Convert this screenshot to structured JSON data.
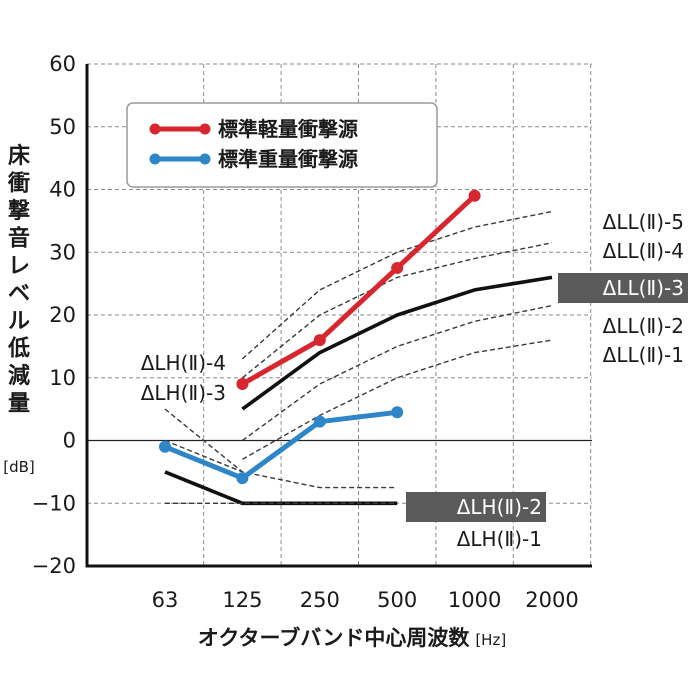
{
  "chart_data": {
    "type": "line",
    "xlabel": "オクターブバンド中心周波数",
    "xunit": "[Hz]",
    "ylabel": "床衝撃音レベル低減量",
    "yunit": "[dB]",
    "categories": [
      "63",
      "125",
      "250",
      "500",
      "1000",
      "2000"
    ],
    "ylim": [
      -20,
      60
    ],
    "yticks": [
      60,
      50,
      40,
      30,
      20,
      10,
      0,
      -10,
      -20
    ],
    "grid": true,
    "legend_position": "top-left",
    "series": [
      {
        "name": "標準軽量衝撃源",
        "color": "#d7262e",
        "values": [
          null,
          9,
          16,
          27.5,
          39,
          null
        ]
      },
      {
        "name": "標準重量衝撃源",
        "color": "#2e86c8",
        "values": [
          -1,
          -6,
          3,
          4.5,
          null,
          null
        ]
      }
    ],
    "reference_curves": [
      {
        "label": "ΔLL(Ⅱ)-5",
        "style": "dashed",
        "highlight": false,
        "values": [
          null,
          13,
          24,
          30,
          34,
          36.5
        ]
      },
      {
        "label": "ΔLL(Ⅱ)-4",
        "style": "dashed",
        "highlight": false,
        "values": [
          null,
          10,
          20,
          26,
          29,
          31.5
        ]
      },
      {
        "label": "ΔLL(Ⅱ)-3",
        "style": "solid",
        "highlight": true,
        "values": [
          null,
          5,
          14,
          20,
          24,
          26
        ]
      },
      {
        "label": "ΔLL(Ⅱ)-2",
        "style": "dashed",
        "highlight": false,
        "values": [
          null,
          0,
          9,
          15,
          19,
          21.5
        ]
      },
      {
        "label": "ΔLL(Ⅱ)-1",
        "style": "dashed",
        "highlight": false,
        "values": [
          null,
          -3,
          4,
          10,
          14,
          16
        ]
      },
      {
        "label": "ΔLH(Ⅱ)-4",
        "style": "dashed",
        "highlight": false,
        "values": [
          5,
          -5,
          -7.5,
          -7.5,
          null,
          null
        ]
      },
      {
        "label": "ΔLH(Ⅱ)-3",
        "style": "dashed",
        "highlight": false,
        "values": [
          0,
          -5,
          null,
          null,
          null,
          null
        ]
      },
      {
        "label": "ΔLH(Ⅱ)-2",
        "style": "solid",
        "highlight": true,
        "values": [
          -5,
          -10,
          -10,
          -10,
          null,
          null
        ]
      },
      {
        "label": "ΔLH(Ⅱ)-1",
        "style": "dashed",
        "highlight": false,
        "values": [
          -10,
          -10,
          -10,
          -10,
          null,
          null
        ]
      }
    ]
  }
}
